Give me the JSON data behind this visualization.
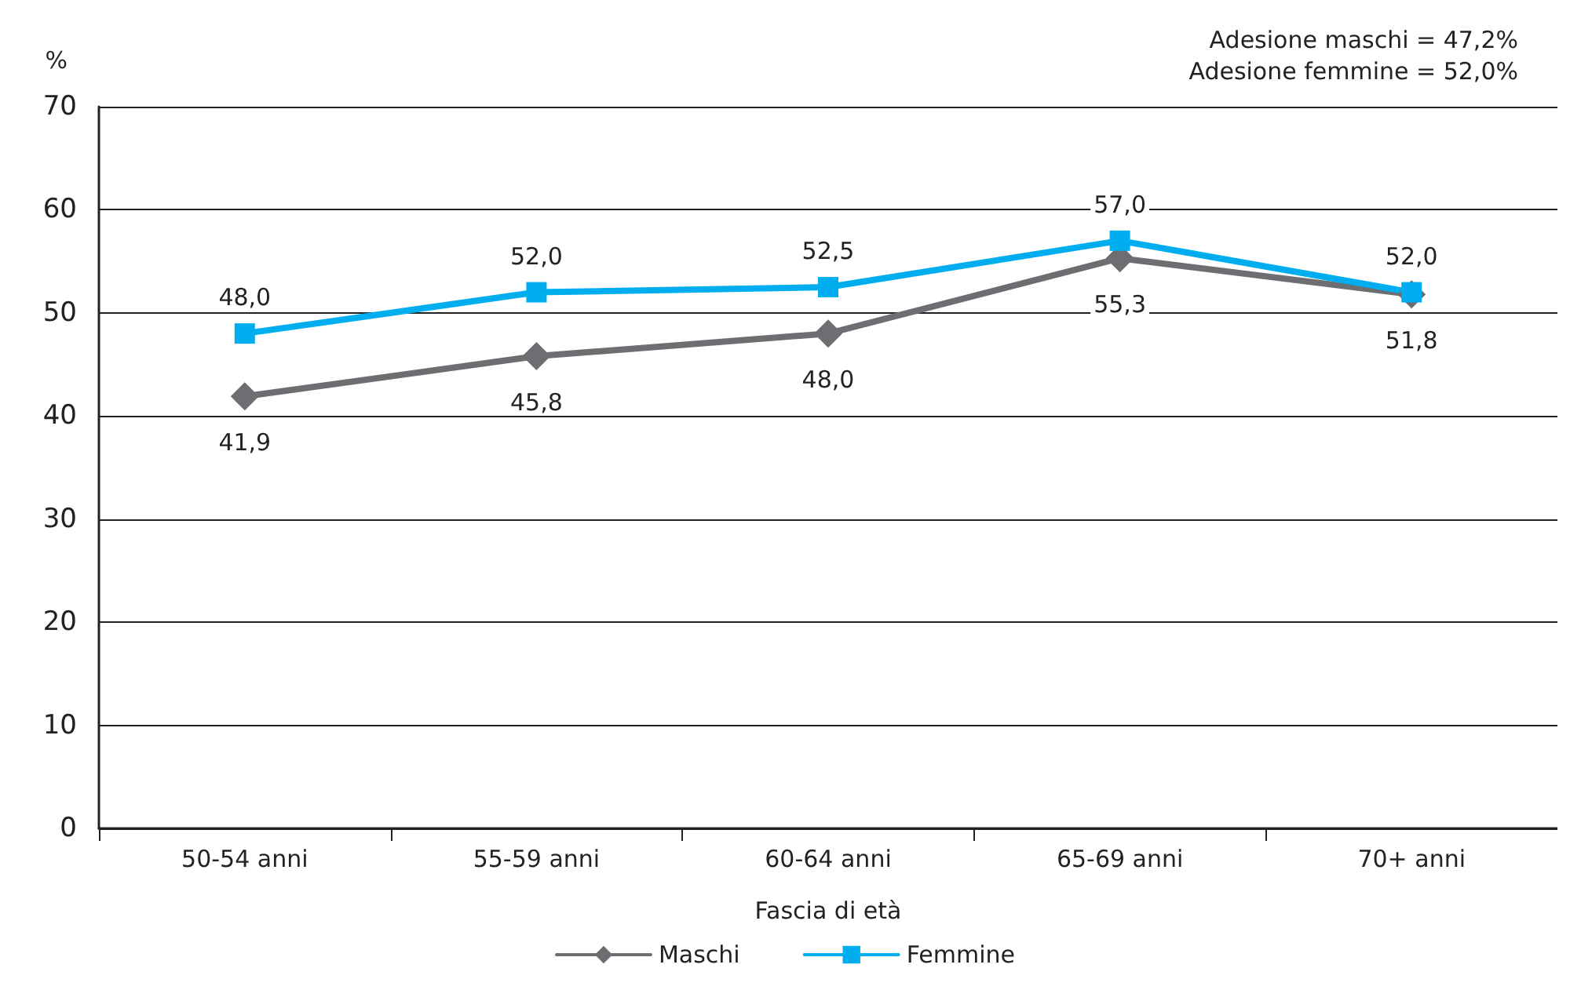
{
  "chart_data": {
    "type": "line",
    "xlabel": "Fascia di età",
    "ylabel": "%",
    "categories": [
      "50-54 anni",
      "55-59 anni",
      "60-64 anni",
      "65-69 anni",
      "70+ anni"
    ],
    "series": [
      {
        "name": "Maschi",
        "color": "#6d6e71",
        "marker": "diamond",
        "values": [
          41.9,
          45.8,
          48.0,
          55.3,
          51.8
        ],
        "value_labels": [
          "41,9",
          "45,8",
          "48,0",
          "55,3",
          "51,8"
        ]
      },
      {
        "name": "Femmine",
        "color": "#00aeef",
        "marker": "square",
        "values": [
          48.0,
          52.0,
          52.5,
          57.0,
          52.0
        ],
        "value_labels": [
          "48,0",
          "52,0",
          "52,5",
          "57,0",
          "52,0"
        ]
      }
    ],
    "ylim": [
      0,
      70
    ],
    "yticks": [
      0,
      10,
      20,
      30,
      40,
      50,
      60,
      70
    ],
    "grid": "y",
    "legend": "bottom",
    "line_style": "solid",
    "annotations": [
      "Adesione maschi = 47,2%",
      "Adesione femmine = 52,0%"
    ]
  }
}
